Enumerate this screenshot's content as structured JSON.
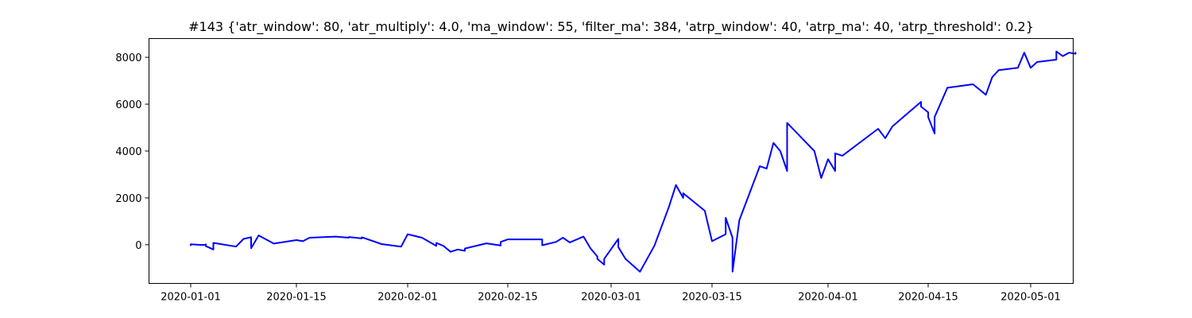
{
  "chart_data": {
    "type": "line",
    "title": "#143 {'atr_window': 80, 'atr_multiply': 4.0, 'ma_window': 55, 'filter_ma': 384, 'atrp_window': 40, 'atrp_ma': 40, 'atrp_threshold': 0.2}",
    "xlabel": "",
    "ylabel": "",
    "x_type": "date",
    "xlim": [
      "2019-12-26",
      "2020-05-03"
    ],
    "ylim": [
      -1650,
      8800
    ],
    "x_ticks": [
      "2020-01-01",
      "2020-01-15",
      "2020-02-01",
      "2020-02-15",
      "2020-03-01",
      "2020-03-15",
      "2020-04-01",
      "2020-04-15",
      "2020-05-01"
    ],
    "y_ticks": [
      0,
      2000,
      4000,
      6000,
      8000
    ],
    "grid": false,
    "legend": "none",
    "series": [
      {
        "color": "#0000ff",
        "points": [
          [
            "2020-01-01",
            -20
          ],
          [
            "2020-01-01",
            20
          ],
          [
            "2020-01-02",
            0
          ],
          [
            "2020-01-03",
            -10
          ],
          [
            "2020-01-03",
            20
          ],
          [
            "2020-01-03",
            -60
          ],
          [
            "2020-01-04",
            -200
          ],
          [
            "2020-01-04",
            80
          ],
          [
            "2020-01-07",
            -80
          ],
          [
            "2020-01-08",
            250
          ],
          [
            "2020-01-09",
            320
          ],
          [
            "2020-01-09",
            -150
          ],
          [
            "2020-01-10",
            400
          ],
          [
            "2020-01-12",
            50
          ],
          [
            "2020-01-15",
            200
          ],
          [
            "2020-01-16",
            150
          ],
          [
            "2020-01-17",
            300
          ],
          [
            "2020-01-21",
            350
          ],
          [
            "2020-01-23",
            300
          ],
          [
            "2020-01-23",
            330
          ],
          [
            "2020-01-25",
            270
          ],
          [
            "2020-01-25",
            320
          ],
          [
            "2020-01-28",
            30
          ],
          [
            "2020-01-31",
            -80
          ],
          [
            "2020-02-01",
            450
          ],
          [
            "2020-02-03",
            300
          ],
          [
            "2020-02-05",
            -50
          ],
          [
            "2020-02-05",
            80
          ],
          [
            "2020-02-06",
            -50
          ],
          [
            "2020-02-07",
            -300
          ],
          [
            "2020-02-08",
            -200
          ],
          [
            "2020-02-09",
            -260
          ],
          [
            "2020-02-09",
            -160
          ],
          [
            "2020-02-12",
            60
          ],
          [
            "2020-02-14",
            -30
          ],
          [
            "2020-02-14",
            120
          ],
          [
            "2020-02-15",
            230
          ],
          [
            "2020-02-20",
            230
          ],
          [
            "2020-02-20",
            -20
          ],
          [
            "2020-02-22",
            120
          ],
          [
            "2020-02-23",
            300
          ],
          [
            "2020-02-24",
            100
          ],
          [
            "2020-02-26",
            350
          ],
          [
            "2020-02-27",
            -150
          ],
          [
            "2020-02-28",
            -500
          ],
          [
            "2020-02-28",
            -600
          ],
          [
            "2020-02-29",
            -850
          ],
          [
            "2020-02-29",
            -600
          ],
          [
            "2020-03-02",
            250
          ],
          [
            "2020-03-02",
            -100
          ],
          [
            "2020-03-03",
            -600
          ],
          [
            "2020-03-05",
            -1150
          ],
          [
            "2020-03-07",
            -50
          ],
          [
            "2020-03-09",
            1600
          ],
          [
            "2020-03-10",
            2550
          ],
          [
            "2020-03-11",
            2000
          ],
          [
            "2020-03-11",
            2200
          ],
          [
            "2020-03-14",
            1450
          ],
          [
            "2020-03-15",
            150
          ],
          [
            "2020-03-17",
            450
          ],
          [
            "2020-03-17",
            1150
          ],
          [
            "2020-03-18",
            300
          ],
          [
            "2020-03-18",
            -1150
          ],
          [
            "2020-03-19",
            1050
          ],
          [
            "2020-03-22",
            3350
          ],
          [
            "2020-03-23",
            3250
          ],
          [
            "2020-03-24",
            4350
          ],
          [
            "2020-03-25",
            4000
          ],
          [
            "2020-03-26",
            3150
          ],
          [
            "2020-03-26",
            4000
          ],
          [
            "2020-03-26",
            5200
          ],
          [
            "2020-03-30",
            4000
          ],
          [
            "2020-03-31",
            2850
          ],
          [
            "2020-04-01",
            3650
          ],
          [
            "2020-04-02",
            3150
          ],
          [
            "2020-04-02",
            3900
          ],
          [
            "2020-04-03",
            3800
          ],
          [
            "2020-04-08",
            4950
          ],
          [
            "2020-04-09",
            4550
          ],
          [
            "2020-04-10",
            5050
          ],
          [
            "2020-04-14",
            6100
          ],
          [
            "2020-04-14",
            5900
          ],
          [
            "2020-04-15",
            5650
          ],
          [
            "2020-04-15",
            5450
          ],
          [
            "2020-04-16",
            4750
          ],
          [
            "2020-04-16",
            5450
          ],
          [
            "2020-04-18",
            6700
          ],
          [
            "2020-04-22",
            6850
          ],
          [
            "2020-04-24",
            6400
          ],
          [
            "2020-04-25",
            7150
          ],
          [
            "2020-04-26",
            7450
          ],
          [
            "2020-04-29",
            7550
          ],
          [
            "2020-04-30",
            8200
          ],
          [
            "2020-05-01",
            7550
          ],
          [
            "2020-05-02",
            7800
          ],
          [
            "2020-05-05",
            7900
          ],
          [
            "2020-05-05",
            8250
          ],
          [
            "2020-05-06",
            8050
          ],
          [
            "2020-05-07",
            8200
          ],
          [
            "2020-05-08",
            8150
          ],
          [
            "2020-05-08",
            8200
          ]
        ]
      }
    ]
  }
}
